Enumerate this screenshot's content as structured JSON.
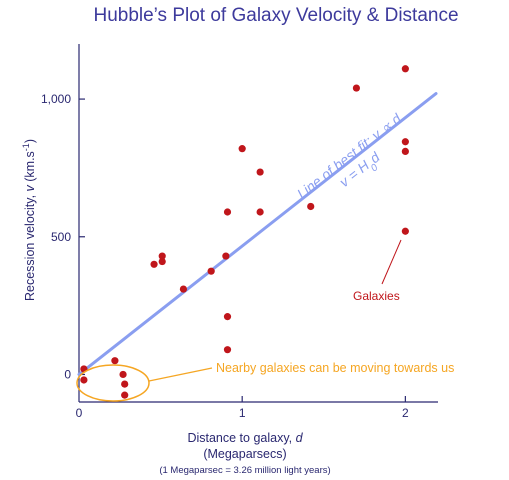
{
  "chart_data": {
    "type": "scatter",
    "title": "Hubble’s Plot of Galaxy Velocity & Distance",
    "xlabel": "Distance to galaxy, d",
    "xlabel_unit": "(Megaparsecs)",
    "xlabel_note": "(1 Megaparsec = 3.26 million light years)",
    "ylabel": "Recession velocity, v (km.s-1)",
    "xlim": [
      0,
      2.2
    ],
    "ylim": [
      -100,
      1200
    ],
    "x_ticks": [
      {
        "value": 0,
        "label": "0"
      },
      {
        "value": 1,
        "label": "1"
      },
      {
        "value": 2,
        "label": "2"
      }
    ],
    "y_ticks": [
      {
        "value": 0,
        "label": "0"
      },
      {
        "value": 500,
        "label": "500"
      },
      {
        "value": 1000,
        "label": "1,000"
      }
    ],
    "grid": false,
    "fit_line": {
      "label_line1": "Line of best fit: v ∝ d",
      "label_line2": "v = H0d",
      "start": [
        0,
        0
      ],
      "end": [
        2.2,
        1020
      ],
      "color": "#8a9ef0"
    },
    "points": [
      {
        "x": 0.03,
        "y": 20
      },
      {
        "x": 0.03,
        "y": -20
      },
      {
        "x": 0.22,
        "y": 50
      },
      {
        "x": 0.27,
        "y": 0
      },
      {
        "x": 0.28,
        "y": -35
      },
      {
        "x": 0.28,
        "y": -75
      },
      {
        "x": 0.46,
        "y": 400
      },
      {
        "x": 0.51,
        "y": 410
      },
      {
        "x": 0.51,
        "y": 430
      },
      {
        "x": 0.64,
        "y": 310
      },
      {
        "x": 0.81,
        "y": 375
      },
      {
        "x": 0.9,
        "y": 430
      },
      {
        "x": 0.91,
        "y": 590
      },
      {
        "x": 0.91,
        "y": 210
      },
      {
        "x": 0.91,
        "y": 90
      },
      {
        "x": 1.0,
        "y": 820
      },
      {
        "x": 1.11,
        "y": 590
      },
      {
        "x": 1.11,
        "y": 735
      },
      {
        "x": 1.42,
        "y": 610
      },
      {
        "x": 1.7,
        "y": 1040
      },
      {
        "x": 2.0,
        "y": 1110
      },
      {
        "x": 2.0,
        "y": 845
      },
      {
        "x": 2.0,
        "y": 810
      },
      {
        "x": 2.0,
        "y": 520
      }
    ],
    "point_color": "#c0161b",
    "annotations": {
      "nearby": "Nearby galaxies can be moving towards us",
      "nearby_color": "#f5a623",
      "galaxies": "Galaxies",
      "galaxies_color": "#c0161b"
    },
    "axis_color": "#2a2870",
    "title_color": "#3d3a9c"
  }
}
